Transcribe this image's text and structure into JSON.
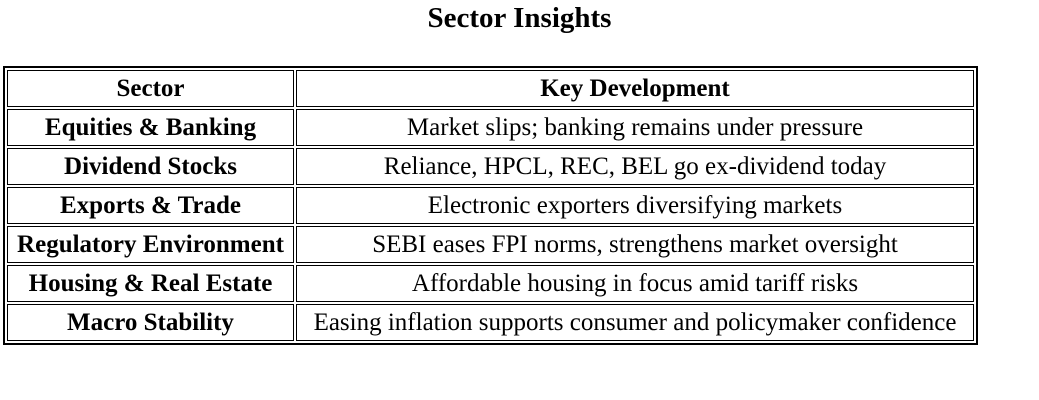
{
  "page_title": "Sector Insights",
  "colors": {
    "text": "#000000",
    "border": "#000000",
    "background": "#ffffff"
  },
  "table": {
    "columns": [
      "Sector",
      "Key Development"
    ],
    "rows": [
      {
        "sector": "Equities & Banking",
        "development": "Market slips; banking remains under pressure"
      },
      {
        "sector": "Dividend Stocks",
        "development": "Reliance, HPCL, REC, BEL go ex-dividend today"
      },
      {
        "sector": "Exports & Trade",
        "development": "Electronic exporters diversifying markets"
      },
      {
        "sector": "Regulatory Environment",
        "development": "SEBI eases FPI norms, strengthens market oversight"
      },
      {
        "sector": "Housing & Real Estate",
        "development": "Affordable housing in focus amid tariff risks"
      },
      {
        "sector": "Macro Stability",
        "development": "Easing inflation supports consumer and policymaker confidence"
      }
    ]
  }
}
